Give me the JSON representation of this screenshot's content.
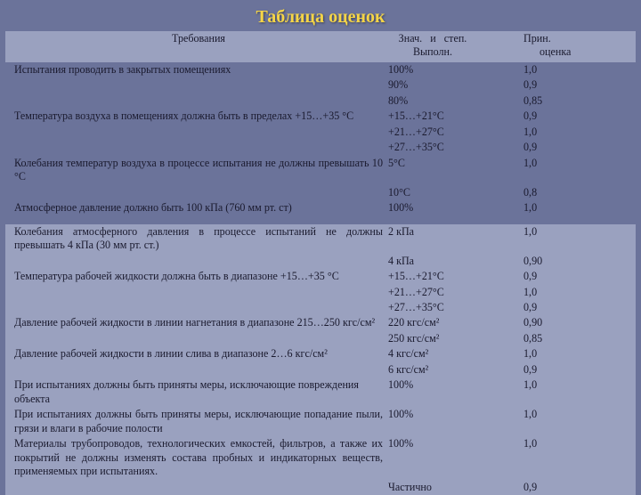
{
  "title": "Таблица оценок",
  "headers": {
    "c1": "Требования",
    "c2a": "Знач.   и   степ.",
    "c2b": "Выполн.",
    "c4a": "Прин.",
    "c4b": "оценка"
  },
  "group1": [
    {
      "req": "Испытания проводить в закрытых помещениях",
      "sub": [
        {
          "v": "100%",
          "s": "1,0"
        },
        {
          "v": "90%",
          "s": "0,9"
        },
        {
          "v": "80%",
          "s": "0,85"
        }
      ]
    },
    {
      "req": "Температура воздуха в помещениях должна быть в пределах +15…+35 °С",
      "sub": [
        {
          "v": "+15…+21°С",
          "s": "0,9"
        },
        {
          "v": "+21…+27°С",
          "s": "1,0"
        },
        {
          "v": "+27…+35°С",
          "s": "0,9"
        }
      ]
    },
    {
      "req": "Колебания температур воздуха в процессе испытания не должны превышать 10 °С",
      "justify": true,
      "sub": [
        {
          "v": "5°С",
          "s": "1,0"
        },
        {
          "v": "10°С",
          "s": "0,8"
        }
      ]
    },
    {
      "req": "Атмосферное давление должно быть 100 кПа (760 мм рт. ст)",
      "sub": [
        {
          "v": "100%",
          "s": "1,0"
        }
      ]
    }
  ],
  "group2": [
    {
      "req": "Колебания атмосферного давления в процессе испытаний не должны превышать 4 кПа (30 мм рт. ст.)",
      "justify": true,
      "sub": [
        {
          "v": "2 кПа",
          "s": "1,0"
        },
        {
          "v": "4 кПа",
          "s": "0,90"
        }
      ]
    },
    {
      "req": "Температура рабочей жидкости должна быть в диапазоне +15…+35 °С",
      "sub": [
        {
          "v": "+15…+21°С",
          "s": "0,9"
        },
        {
          "v": "+21…+27°С",
          "s": "1,0"
        },
        {
          "v": "+27…+35°С",
          "s": "0,9"
        }
      ]
    },
    {
      "req": "Давление рабочей жидкости в линии нагнетания в диапазоне 215…250 кгс/см²",
      "justify": true,
      "sub": [
        {
          "v": "220 кгс/см²",
          "s": "0,90"
        },
        {
          "v": "250 кгс/см²",
          "s": "0,85"
        }
      ]
    },
    {
      "req": "Давление рабочей жидкости в линии слива в диапазоне 2…6 кгс/см²",
      "sub": [
        {
          "v": "4 кгс/см²",
          "s": "1,0"
        },
        {
          "v": "6 кгс/см²",
          "s": "0,9"
        }
      ]
    },
    {
      "req": "При испытаниях должны быть приняты меры, исключающие повреждения объекта",
      "sub": [
        {
          "v": "100%",
          "s": "1,0"
        }
      ]
    },
    {
      "req": "При испытаниях должны быть приняты меры, исключающие попадание пыли, грязи и влаги в рабочие полости",
      "justify": true,
      "sub": [
        {
          "v": "100%",
          "s": "1,0"
        }
      ]
    },
    {
      "req": "Материалы трубопроводов, технологических емкостей, фильтров, а также их покрытий не должны изменять состава пробных и индикаторных веществ, применяемых при испытаниях.",
      "justify": true,
      "sub": [
        {
          "v": "100%",
          "s": "1,0"
        },
        {
          "v": "Частично",
          "s": "0,9"
        }
      ]
    }
  ]
}
